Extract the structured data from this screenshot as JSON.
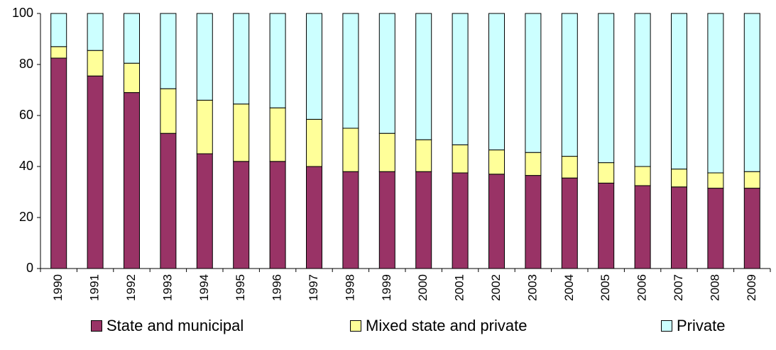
{
  "chart_data": {
    "type": "bar",
    "stacked": true,
    "title": "",
    "xlabel": "",
    "ylabel": "",
    "ylim": [
      0,
      100
    ],
    "yticks": [
      "0",
      "20",
      "40",
      "60",
      "80",
      "100"
    ],
    "categories": [
      "1990",
      "1991",
      "1992",
      "1993",
      "1994",
      "1995",
      "1996",
      "1997",
      "1998",
      "1999",
      "2000",
      "2001",
      "2002",
      "2003",
      "2004",
      "2005",
      "2006",
      "2007",
      "2008",
      "2009"
    ],
    "series": [
      {
        "name": "State and municipal",
        "color": "#993366",
        "values": [
          82.5,
          75.5,
          69,
          53,
          45,
          42,
          42,
          40,
          38,
          38,
          38,
          37.5,
          37,
          36.5,
          35.5,
          33.5,
          32.5,
          32,
          31.5,
          31.5
        ]
      },
      {
        "name": "Mixed state and private",
        "color": "#FFFF99",
        "values": [
          4.5,
          10,
          11.5,
          17.5,
          21,
          22.5,
          21,
          18.5,
          17,
          15,
          12.5,
          11,
          9.5,
          9,
          8.5,
          8,
          7.5,
          7,
          6,
          6.5
        ]
      },
      {
        "name": "Private",
        "color": "#CCFFFF",
        "values": [
          13,
          14.5,
          19.5,
          29.5,
          34,
          35.5,
          37,
          41.5,
          45,
          47,
          49.5,
          51.5,
          53.5,
          54.5,
          56,
          58.5,
          60,
          61,
          62.5,
          62
        ]
      }
    ],
    "grid": false,
    "legend_position": "bottom"
  }
}
